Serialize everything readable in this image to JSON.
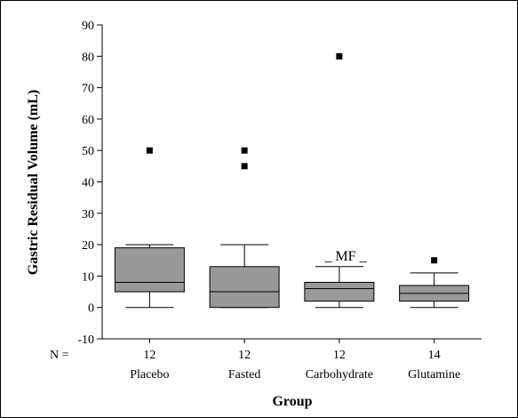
{
  "chart_data": {
    "type": "box",
    "ylabel": "Gastric Residual Volume (mL)",
    "xlabel": "Group",
    "ylim": [
      -10,
      90
    ],
    "yticks": [
      -10,
      0,
      10,
      20,
      30,
      40,
      50,
      60,
      70,
      80,
      90
    ],
    "n_label": "N =",
    "annotation": "_ MF _",
    "colors": {
      "box_fill": "#999999"
    },
    "groups": [
      {
        "name": "Placebo",
        "n": "12",
        "whisker_low": 0,
        "q1": 5,
        "median": 8,
        "q3": 19,
        "whisker_high": 20,
        "outliers": [
          50
        ]
      },
      {
        "name": "Fasted",
        "n": "12",
        "whisker_low": 0,
        "q1": 0,
        "median": 5,
        "q3": 13,
        "whisker_high": 20,
        "outliers": [
          45,
          50
        ]
      },
      {
        "name": "Carbohydrate",
        "n": "12",
        "whisker_low": 0,
        "q1": 2,
        "median": 6,
        "q3": 8,
        "whisker_high": 13,
        "outliers": [
          80
        ]
      },
      {
        "name": "Glutamine",
        "n": "14",
        "whisker_low": 0,
        "q1": 2,
        "median": 4.5,
        "q3": 7,
        "whisker_high": 11,
        "outliers": [
          15
        ]
      }
    ]
  }
}
